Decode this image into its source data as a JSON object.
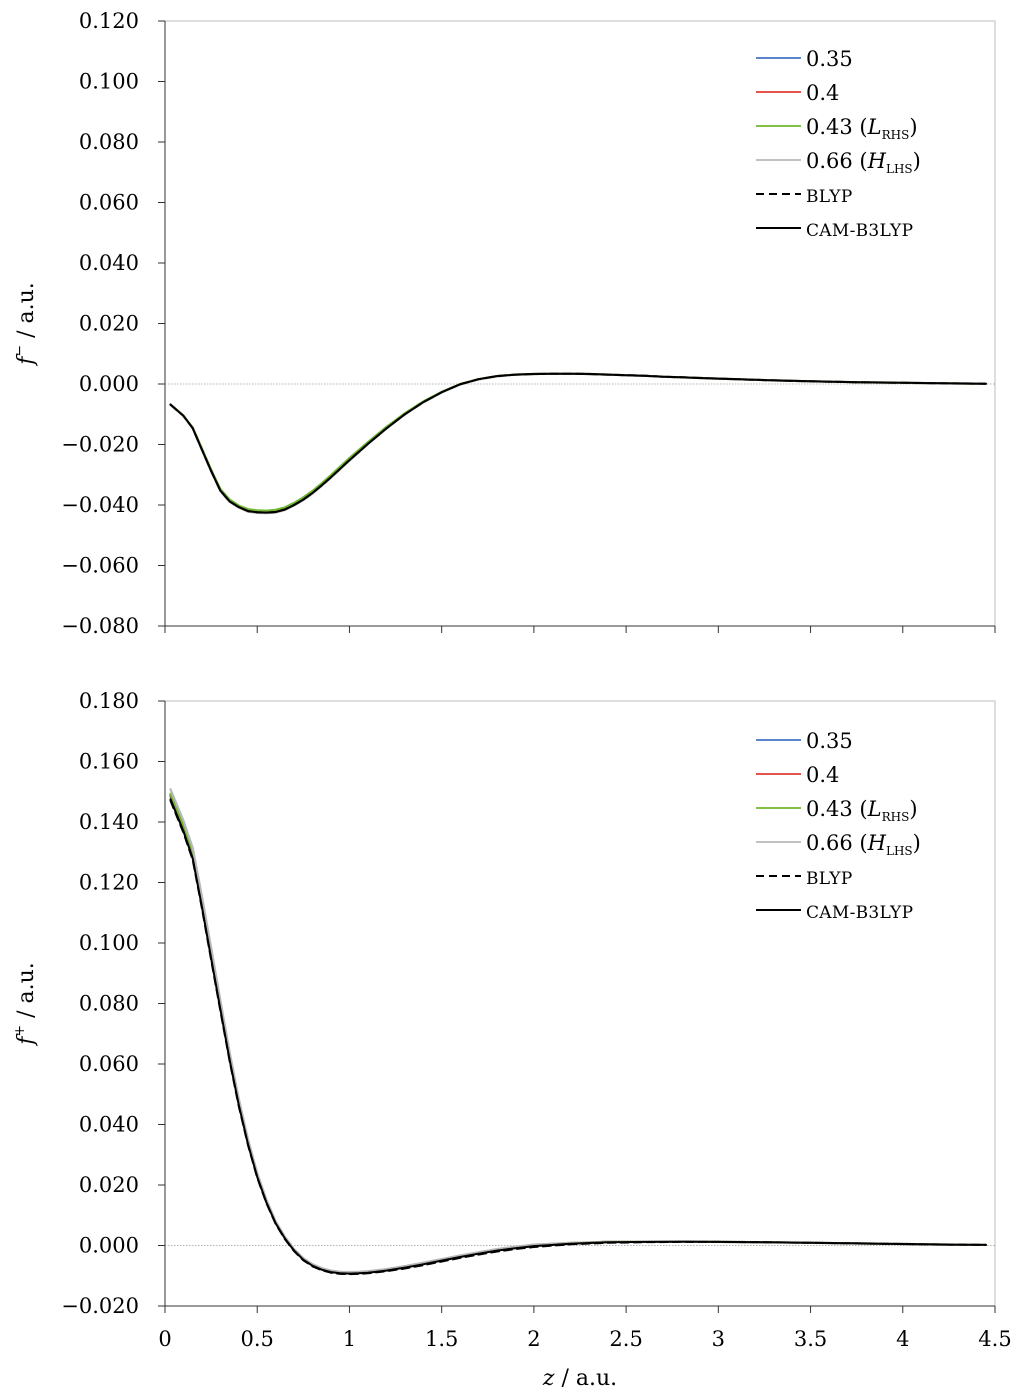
{
  "figure": {
    "xlabel_var": "z",
    "xlabel_unit": " / a.u."
  },
  "chart_data": [
    {
      "type": "line",
      "ylabel_var": "f",
      "ylabel_sup": "−",
      "ylabel_unit": " / a.u.",
      "xlim": [
        0,
        4.5
      ],
      "ylim": [
        -0.08,
        0.12
      ],
      "xticks": [
        "0",
        "0.5",
        "1",
        "1.5",
        "2",
        "2.5",
        "3",
        "3.5",
        "4",
        "4.5"
      ],
      "xtick_values": [
        0,
        0.5,
        1,
        1.5,
        2,
        2.5,
        3,
        3.5,
        4,
        4.5
      ],
      "yticks": [
        "−0.080",
        "−0.060",
        "−0.040",
        "−0.020",
        "0.000",
        "0.020",
        "0.040",
        "0.060",
        "0.080",
        "0.100",
        "0.120"
      ],
      "ytick_values": [
        -0.08,
        -0.06,
        -0.04,
        -0.02,
        0.0,
        0.02,
        0.04,
        0.06,
        0.08,
        0.1,
        0.12
      ],
      "show_xtick_labels": false,
      "zero_line": true,
      "legend_position": "top-right",
      "x": [
        0.03,
        0.1,
        0.15,
        0.2,
        0.25,
        0.3,
        0.35,
        0.4,
        0.45,
        0.5,
        0.55,
        0.6,
        0.65,
        0.7,
        0.75,
        0.8,
        0.85,
        0.9,
        0.95,
        1.0,
        1.1,
        1.2,
        1.3,
        1.4,
        1.5,
        1.6,
        1.7,
        1.8,
        1.9,
        2.0,
        2.1,
        2.2,
        2.3,
        2.4,
        2.5,
        2.6,
        2.7,
        2.8,
        2.9,
        3.0,
        3.25,
        3.5,
        3.75,
        4.0,
        4.25,
        4.45
      ],
      "series": [
        {
          "name": "0.35",
          "color": "#4472c4",
          "dash": "solid",
          "values": [
            -0.0068,
            -0.0105,
            -0.0145,
            -0.0215,
            -0.0285,
            -0.035,
            -0.0385,
            -0.0405,
            -0.0418,
            -0.0422,
            -0.0423,
            -0.0421,
            -0.0413,
            -0.0398,
            -0.038,
            -0.0358,
            -0.0333,
            -0.0306,
            -0.0278,
            -0.025,
            -0.0196,
            -0.0145,
            -0.0099,
            -0.006,
            -0.0027,
            -0.0001,
            0.0016,
            0.0026,
            0.0031,
            0.0033,
            0.0034,
            0.0034,
            0.0033,
            0.0031,
            0.0029,
            0.0027,
            0.0024,
            0.0022,
            0.002,
            0.0018,
            0.0013,
            0.0009,
            0.0006,
            0.0004,
            0.0002,
            0.0001
          ]
        },
        {
          "name": "0.4",
          "color": "#e03c31",
          "dash": "solid",
          "values": [
            -0.0068,
            -0.0105,
            -0.0145,
            -0.0216,
            -0.0286,
            -0.0351,
            -0.0386,
            -0.0406,
            -0.0419,
            -0.0423,
            -0.0424,
            -0.0422,
            -0.0414,
            -0.0399,
            -0.0381,
            -0.0359,
            -0.0334,
            -0.0307,
            -0.0279,
            -0.0251,
            -0.0197,
            -0.0146,
            -0.01,
            -0.006,
            -0.0027,
            -0.0001,
            0.0016,
            0.0026,
            0.0031,
            0.0033,
            0.0034,
            0.0034,
            0.0033,
            0.0031,
            0.0029,
            0.0027,
            0.0024,
            0.0022,
            0.002,
            0.0018,
            0.0013,
            0.0009,
            0.0006,
            0.0004,
            0.0002,
            0.0001
          ]
        },
        {
          "name": "0.43 (L_RHS)",
          "color": "#70b62f",
          "dash": "solid",
          "values": [
            -0.0068,
            -0.0104,
            -0.0144,
            -0.0213,
            -0.0283,
            -0.0347,
            -0.0382,
            -0.0402,
            -0.0414,
            -0.0418,
            -0.0419,
            -0.0416,
            -0.0408,
            -0.0393,
            -0.0375,
            -0.0353,
            -0.0328,
            -0.0301,
            -0.0273,
            -0.0245,
            -0.0192,
            -0.0142,
            -0.0097,
            -0.0058,
            -0.0026,
            0.0,
            0.0016,
            0.0026,
            0.0031,
            0.0033,
            0.0034,
            0.0034,
            0.0033,
            0.0031,
            0.0029,
            0.0027,
            0.0024,
            0.0022,
            0.002,
            0.0018,
            0.0013,
            0.0009,
            0.0006,
            0.0004,
            0.0002,
            0.0001
          ]
        },
        {
          "name": "0.66 (H_LHS)",
          "color": "#b8b8b8",
          "dash": "solid",
          "values": [
            -0.0069,
            -0.0106,
            -0.0147,
            -0.0218,
            -0.0289,
            -0.0354,
            -0.039,
            -0.0409,
            -0.0422,
            -0.0426,
            -0.0427,
            -0.0425,
            -0.0417,
            -0.0402,
            -0.0384,
            -0.0362,
            -0.0337,
            -0.031,
            -0.0282,
            -0.0254,
            -0.0199,
            -0.0148,
            -0.0101,
            -0.0061,
            -0.0028,
            -0.0002,
            0.0015,
            0.0025,
            0.0031,
            0.0033,
            0.0034,
            0.0034,
            0.0033,
            0.0031,
            0.0029,
            0.0027,
            0.0024,
            0.0022,
            0.002,
            0.0018,
            0.0013,
            0.0009,
            0.0006,
            0.0004,
            0.0002,
            0.0001
          ]
        },
        {
          "name": "BLYP",
          "color": "#000000",
          "dash": "dashed",
          "values": [
            -0.0068,
            -0.0105,
            -0.0146,
            -0.0217,
            -0.0287,
            -0.0352,
            -0.0388,
            -0.0407,
            -0.042,
            -0.0424,
            -0.0425,
            -0.0423,
            -0.0415,
            -0.04,
            -0.0382,
            -0.036,
            -0.0335,
            -0.0308,
            -0.028,
            -0.0252,
            -0.0198,
            -0.0147,
            -0.01,
            -0.006,
            -0.0027,
            -0.0001,
            0.0016,
            0.0026,
            0.0031,
            0.0033,
            0.0034,
            0.0034,
            0.0033,
            0.0031,
            0.0029,
            0.0027,
            0.0024,
            0.0022,
            0.002,
            0.0018,
            0.0013,
            0.0009,
            0.0006,
            0.0004,
            0.0002,
            0.0001
          ]
        },
        {
          "name": "CAM-B3LYP",
          "color": "#000000",
          "dash": "solid",
          "values": [
            -0.0068,
            -0.0105,
            -0.0146,
            -0.0217,
            -0.0287,
            -0.0352,
            -0.0388,
            -0.0407,
            -0.042,
            -0.0424,
            -0.0425,
            -0.0423,
            -0.0415,
            -0.04,
            -0.0382,
            -0.036,
            -0.0335,
            -0.0308,
            -0.028,
            -0.0252,
            -0.0198,
            -0.0147,
            -0.01,
            -0.006,
            -0.0027,
            -0.0001,
            0.0016,
            0.0026,
            0.0031,
            0.0033,
            0.0034,
            0.0034,
            0.0033,
            0.0031,
            0.0029,
            0.0027,
            0.0024,
            0.0022,
            0.002,
            0.0018,
            0.0013,
            0.0009,
            0.0006,
            0.0004,
            0.0002,
            0.0001
          ]
        }
      ]
    },
    {
      "type": "line",
      "ylabel_var": "f",
      "ylabel_sup": "+",
      "ylabel_unit": " / a.u.",
      "xlim": [
        0,
        4.5
      ],
      "ylim": [
        -0.02,
        0.18
      ],
      "xticks": [
        "0",
        "0.5",
        "1",
        "1.5",
        "2",
        "2.5",
        "3",
        "3.5",
        "4",
        "4.5"
      ],
      "xtick_values": [
        0,
        0.5,
        1,
        1.5,
        2,
        2.5,
        3,
        3.5,
        4,
        4.5
      ],
      "yticks": [
        "−0.020",
        "0.000",
        "0.020",
        "0.040",
        "0.060",
        "0.080",
        "0.100",
        "0.120",
        "0.140",
        "0.160",
        "0.180"
      ],
      "ytick_values": [
        -0.02,
        0.0,
        0.02,
        0.04,
        0.06,
        0.08,
        0.1,
        0.12,
        0.14,
        0.16,
        0.18
      ],
      "show_xtick_labels": true,
      "zero_line": true,
      "legend_position": "top-right",
      "x": [
        0.03,
        0.1,
        0.15,
        0.2,
        0.25,
        0.3,
        0.35,
        0.4,
        0.45,
        0.5,
        0.55,
        0.6,
        0.65,
        0.7,
        0.75,
        0.8,
        0.85,
        0.9,
        0.95,
        1.0,
        1.05,
        1.1,
        1.2,
        1.3,
        1.4,
        1.5,
        1.6,
        1.7,
        1.8,
        1.9,
        2.0,
        2.2,
        2.4,
        2.6,
        2.8,
        3.0,
        3.25,
        3.5,
        3.75,
        4.0,
        4.25,
        4.45
      ],
      "series": [
        {
          "name": "0.35",
          "color": "#4472c4",
          "dash": "solid",
          "values": [
            0.1485,
            0.138,
            0.129,
            0.113,
            0.096,
            0.079,
            0.062,
            0.047,
            0.034,
            0.023,
            0.0145,
            0.0075,
            0.0025,
            -0.0015,
            -0.0045,
            -0.0065,
            -0.0078,
            -0.0086,
            -0.009,
            -0.0091,
            -0.009,
            -0.0088,
            -0.0081,
            -0.0071,
            -0.006,
            -0.0048,
            -0.0036,
            -0.0025,
            -0.0015,
            -0.0007,
            0.0,
            0.0008,
            0.0012,
            0.0013,
            0.0013,
            0.0012,
            0.0011,
            0.0009,
            0.0007,
            0.0005,
            0.0003,
            0.0002
          ]
        },
        {
          "name": "0.4",
          "color": "#e03c31",
          "dash": "solid",
          "values": [
            0.149,
            0.1385,
            0.1295,
            0.1135,
            0.0965,
            0.0795,
            0.0625,
            0.0473,
            0.0342,
            0.0232,
            0.0146,
            0.0076,
            0.0026,
            -0.0014,
            -0.0044,
            -0.0064,
            -0.0077,
            -0.0085,
            -0.0089,
            -0.009,
            -0.0089,
            -0.0087,
            -0.008,
            -0.007,
            -0.0059,
            -0.0047,
            -0.0035,
            -0.0024,
            -0.0014,
            -0.0006,
            0.0001,
            0.0008,
            0.0012,
            0.0013,
            0.0013,
            0.0012,
            0.0011,
            0.0009,
            0.0007,
            0.0005,
            0.0003,
            0.0002
          ]
        },
        {
          "name": "0.43 (L_RHS)",
          "color": "#70b62f",
          "dash": "solid",
          "values": [
            0.1493,
            0.1388,
            0.1298,
            0.1138,
            0.0968,
            0.0798,
            0.0628,
            0.0475,
            0.0344,
            0.0234,
            0.0147,
            0.0077,
            0.0027,
            -0.0013,
            -0.0043,
            -0.0063,
            -0.0076,
            -0.0084,
            -0.0088,
            -0.0089,
            -0.0088,
            -0.0086,
            -0.0079,
            -0.0069,
            -0.0058,
            -0.0046,
            -0.0034,
            -0.0023,
            -0.0013,
            -0.0005,
            0.0002,
            0.0009,
            0.0012,
            0.0013,
            0.0013,
            0.0012,
            0.0011,
            0.0009,
            0.0007,
            0.0005,
            0.0003,
            0.0002
          ]
        },
        {
          "name": "0.66 (H_LHS)",
          "color": "#b8b8b8",
          "dash": "solid",
          "values": [
            0.1508,
            0.1405,
            0.1315,
            0.1155,
            0.0985,
            0.0812,
            0.064,
            0.0485,
            0.0352,
            0.024,
            0.0152,
            0.008,
            0.0029,
            -0.0012,
            -0.0042,
            -0.0062,
            -0.0075,
            -0.0083,
            -0.0087,
            -0.0088,
            -0.0087,
            -0.0085,
            -0.0078,
            -0.0068,
            -0.0057,
            -0.0045,
            -0.0033,
            -0.0022,
            -0.0012,
            -0.0004,
            0.0003,
            0.0009,
            0.0012,
            0.0013,
            0.0013,
            0.0012,
            0.0011,
            0.0009,
            0.0007,
            0.0005,
            0.0003,
            0.0002
          ]
        },
        {
          "name": "BLYP",
          "color": "#000000",
          "dash": "dashed",
          "values": [
            0.147,
            0.1365,
            0.1275,
            0.1115,
            0.0945,
            0.0777,
            0.061,
            0.046,
            0.0332,
            0.0224,
            0.014,
            0.0071,
            0.0021,
            -0.0019,
            -0.0049,
            -0.0069,
            -0.0082,
            -0.009,
            -0.0094,
            -0.0095,
            -0.0094,
            -0.0092,
            -0.0085,
            -0.0076,
            -0.0065,
            -0.0053,
            -0.0041,
            -0.003,
            -0.002,
            -0.0012,
            -0.0005,
            0.0004,
            0.0009,
            0.0011,
            0.0012,
            0.0012,
            0.0011,
            0.0009,
            0.0007,
            0.0005,
            0.0003,
            0.0002
          ]
        },
        {
          "name": "CAM-B3LYP",
          "color": "#000000",
          "dash": "solid",
          "values": [
            0.1475,
            0.137,
            0.128,
            0.112,
            0.095,
            0.0782,
            0.0614,
            0.0464,
            0.0335,
            0.0227,
            0.0142,
            0.0073,
            0.0023,
            -0.0017,
            -0.0047,
            -0.0067,
            -0.008,
            -0.0088,
            -0.0092,
            -0.0093,
            -0.0092,
            -0.009,
            -0.0083,
            -0.0073,
            -0.0062,
            -0.005,
            -0.0038,
            -0.0027,
            -0.0017,
            -0.0009,
            -0.0002,
            0.0006,
            0.0011,
            0.0012,
            0.0013,
            0.0012,
            0.0011,
            0.0009,
            0.0007,
            0.0005,
            0.0003,
            0.0002
          ]
        }
      ]
    }
  ]
}
